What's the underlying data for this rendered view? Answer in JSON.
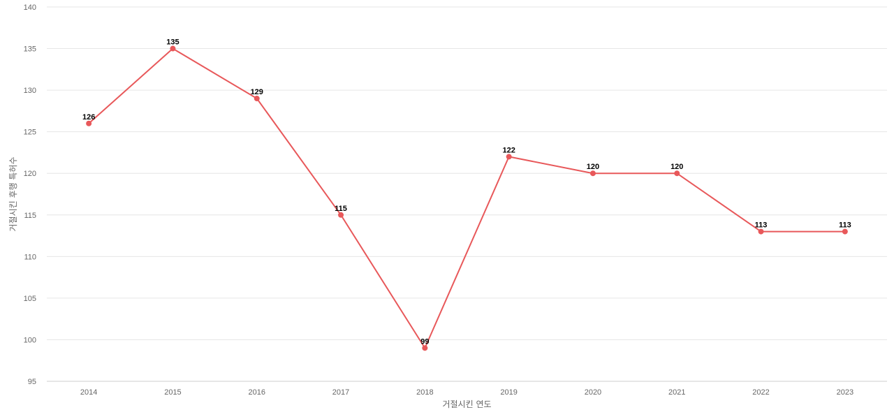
{
  "chart_data": {
    "type": "line",
    "title": "",
    "xlabel": "거절시킨 연도",
    "ylabel": "거절시킨 후행 특허수",
    "categories": [
      "2014",
      "2015",
      "2016",
      "2017",
      "2018",
      "2019",
      "2020",
      "2021",
      "2022",
      "2023"
    ],
    "series": [
      {
        "values": [
          126,
          135,
          129,
          115,
          99,
          122,
          120,
          120,
          113,
          113
        ],
        "color": "#e8585a"
      }
    ],
    "ylim": [
      95,
      140
    ],
    "yticks": [
      95,
      100,
      105,
      110,
      115,
      120,
      125,
      130,
      135,
      140
    ],
    "grid": true,
    "data_labels": true,
    "legend": "none"
  }
}
